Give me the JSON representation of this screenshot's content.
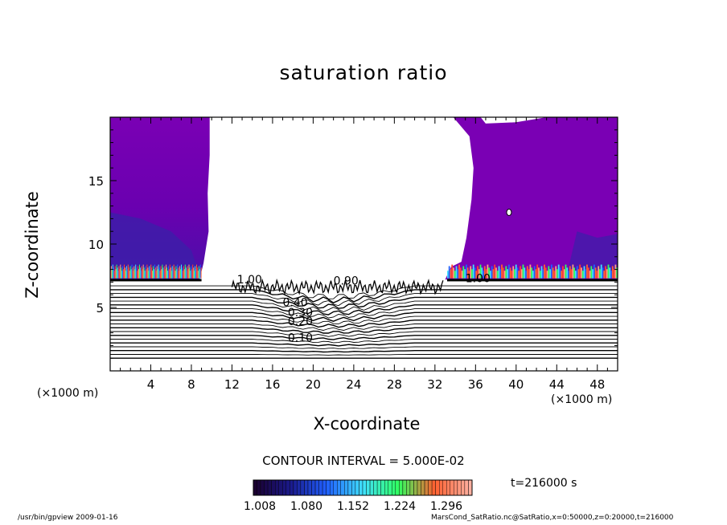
{
  "chart_data": {
    "type": "heatmap",
    "title": "saturation ratio",
    "xlabel": "X-coordinate",
    "ylabel": "Z-coordinate",
    "x_unit": "(×1000 m)",
    "x_unit_right": "(×1000 m)",
    "xlim": [
      0,
      50
    ],
    "ylim": [
      0,
      20
    ],
    "xticks": [
      4,
      8,
      12,
      16,
      20,
      24,
      28,
      32,
      36,
      40,
      44,
      48
    ],
    "yticks": [
      5,
      10,
      15
    ],
    "contour_interval_text": "CONTOUR INTERVAL = 5.000E-02",
    "contour_interval": 0.05,
    "contour_labels": [
      {
        "text": "0.10",
        "x": 17.5,
        "z": 2.3
      },
      {
        "text": "0.20",
        "x": 17.5,
        "z": 3.6
      },
      {
        "text": "0.30",
        "x": 17.5,
        "z": 4.3
      },
      {
        "text": "0.40",
        "x": 17.0,
        "z": 5.1
      },
      {
        "text": "1.00",
        "x": 12.5,
        "z": 6.9
      },
      {
        "text": "1.00",
        "x": 35.0,
        "z": 7.0
      },
      {
        "text": "0.90",
        "x": 22.0,
        "z": 6.8
      }
    ],
    "colorbar": {
      "ticks": [
        1.008,
        1.08,
        1.152,
        1.224,
        1.296
      ],
      "labels": [
        "1.008",
        "1.080",
        "1.152",
        "1.224",
        "1.296"
      ],
      "colors": [
        "#1a0030",
        "#1a1a8c",
        "#2060ff",
        "#40e0ff",
        "#30ff60",
        "#ff6030",
        "#ffb0a0"
      ]
    },
    "time_label": "t=216000 s",
    "fill_colors": {
      "supersaturated": "#7a00b4",
      "boundary": "#ff4030",
      "mid": "#40c0ff"
    },
    "grid": false
  },
  "footer": {
    "left": "/usr/bin/gpview   2009-01-16",
    "right": "MarsCond_SatRatio.nc@SatRatio,x=0:50000,z=0:20000,t=216000"
  }
}
